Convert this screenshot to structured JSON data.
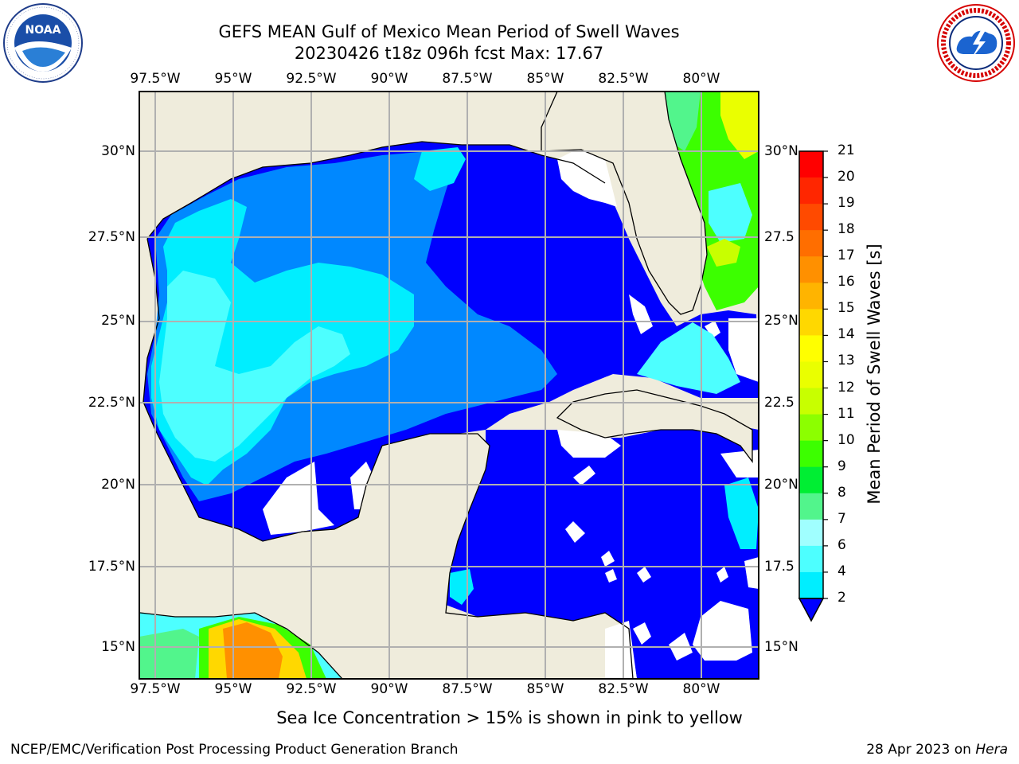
{
  "header": {
    "title_line1": "GEFS MEAN Gulf of Mexico Mean Period of Swell Waves",
    "title_line2": "20230426 t18z 096h fcst   Max: 17.67"
  },
  "logos": {
    "left": {
      "name": "NOAA",
      "ring_text": "NATIONAL OCEANIC AND ATMOSPHERIC ADMINISTRATION · U.S. DEPARTMENT OF COMMERCE"
    },
    "right": {
      "name": "NATIONAL WEATHER SERVICE"
    }
  },
  "map": {
    "lon_labels": [
      "97.5°W",
      "95°W",
      "92.5°W",
      "90°W",
      "87.5°W",
      "85°W",
      "82.5°W",
      "80°W"
    ],
    "lat_labels_left": [
      "30°N",
      "27.5°N",
      "25°N",
      "22.5°N",
      "20°N",
      "17.5°N",
      "15°N"
    ],
    "lat_labels_right": [
      "30°N",
      "27.5",
      "25°N",
      "22.5",
      "20°N",
      "17.5",
      "15°N"
    ],
    "colors": {
      "land": "#efecdc",
      "ocean_low": "#0000ff",
      "no_data": "#ffffff",
      "grid": "#b0b0b0"
    }
  },
  "colorbar": {
    "label": "Mean Period of Swell Waves [s]",
    "ticks": [
      "21",
      "20",
      "19",
      "18",
      "17",
      "16",
      "15",
      "14",
      "13",
      "12",
      "11",
      "10",
      "9",
      "8",
      "7",
      "6",
      "4",
      "2"
    ],
    "colors": [
      "#ff0000",
      "#ff2600",
      "#ff4a00",
      "#ff6e00",
      "#ff9000",
      "#ffb400",
      "#ffd800",
      "#ffff00",
      "#eaff00",
      "#c8ff00",
      "#8cff00",
      "#3cff00",
      "#00ee33",
      "#52f58c",
      "#a0ffff",
      "#4dffff",
      "#00eeff",
      "#0088ff",
      "#0000ff"
    ]
  },
  "notes": {
    "ice": "Sea Ice Concentration > 15% is shown in pink to yellow"
  },
  "footer": {
    "left": "NCEP/EMC/Verification Post Processing Product Generation Branch",
    "date": "28 Apr 2023 on ",
    "host": "Hera"
  }
}
